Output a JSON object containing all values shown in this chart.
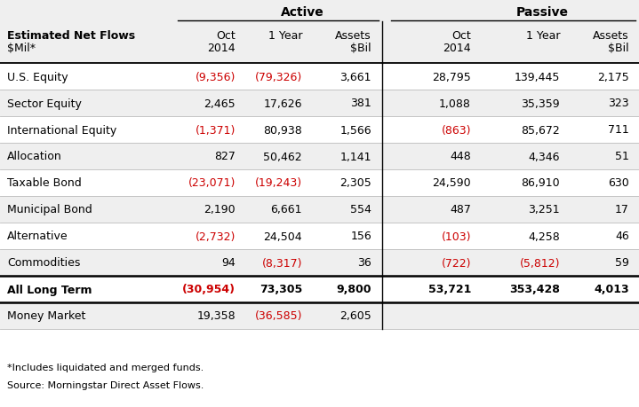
{
  "title_active": "Active",
  "title_passive": "Passive",
  "rows": [
    {
      "label": "U.S. Equity",
      "active_oct": "(9,356)",
      "active_1yr": "(79,326)",
      "active_assets": "3,661",
      "passive_oct": "28,795",
      "passive_1yr": "139,445",
      "passive_assets": "2,175",
      "active_oct_red": true,
      "active_1yr_red": true,
      "active_assets_red": false,
      "passive_oct_red": false,
      "passive_1yr_red": false,
      "passive_assets_red": false,
      "bold": false,
      "bg": "#ffffff"
    },
    {
      "label": "Sector Equity",
      "active_oct": "2,465",
      "active_1yr": "17,626",
      "active_assets": "381",
      "passive_oct": "1,088",
      "passive_1yr": "35,359",
      "passive_assets": "323",
      "active_oct_red": false,
      "active_1yr_red": false,
      "active_assets_red": false,
      "passive_oct_red": false,
      "passive_1yr_red": false,
      "passive_assets_red": false,
      "bold": false,
      "bg": "#efefef"
    },
    {
      "label": "International Equity",
      "active_oct": "(1,371)",
      "active_1yr": "80,938",
      "active_assets": "1,566",
      "passive_oct": "(863)",
      "passive_1yr": "85,672",
      "passive_assets": "711",
      "active_oct_red": true,
      "active_1yr_red": false,
      "active_assets_red": false,
      "passive_oct_red": true,
      "passive_1yr_red": false,
      "passive_assets_red": false,
      "bold": false,
      "bg": "#ffffff"
    },
    {
      "label": "Allocation",
      "active_oct": "827",
      "active_1yr": "50,462",
      "active_assets": "1,141",
      "passive_oct": "448",
      "passive_1yr": "4,346",
      "passive_assets": "51",
      "active_oct_red": false,
      "active_1yr_red": false,
      "active_assets_red": false,
      "passive_oct_red": false,
      "passive_1yr_red": false,
      "passive_assets_red": false,
      "bold": false,
      "bg": "#efefef"
    },
    {
      "label": "Taxable Bond",
      "active_oct": "(23,071)",
      "active_1yr": "(19,243)",
      "active_assets": "2,305",
      "passive_oct": "24,590",
      "passive_1yr": "86,910",
      "passive_assets": "630",
      "active_oct_red": true,
      "active_1yr_red": true,
      "active_assets_red": false,
      "passive_oct_red": false,
      "passive_1yr_red": false,
      "passive_assets_red": false,
      "bold": false,
      "bg": "#ffffff"
    },
    {
      "label": "Municipal Bond",
      "active_oct": "2,190",
      "active_1yr": "6,661",
      "active_assets": "554",
      "passive_oct": "487",
      "passive_1yr": "3,251",
      "passive_assets": "17",
      "active_oct_red": false,
      "active_1yr_red": false,
      "active_assets_red": false,
      "passive_oct_red": false,
      "passive_1yr_red": false,
      "passive_assets_red": false,
      "bold": false,
      "bg": "#efefef"
    },
    {
      "label": "Alternative",
      "active_oct": "(2,732)",
      "active_1yr": "24,504",
      "active_assets": "156",
      "passive_oct": "(103)",
      "passive_1yr": "4,258",
      "passive_assets": "46",
      "active_oct_red": true,
      "active_1yr_red": false,
      "active_assets_red": false,
      "passive_oct_red": true,
      "passive_1yr_red": false,
      "passive_assets_red": false,
      "bold": false,
      "bg": "#ffffff"
    },
    {
      "label": "Commodities",
      "active_oct": "94",
      "active_1yr": "(8,317)",
      "active_assets": "36",
      "passive_oct": "(722)",
      "passive_1yr": "(5,812)",
      "passive_assets": "59",
      "active_oct_red": false,
      "active_1yr_red": true,
      "active_assets_red": false,
      "passive_oct_red": true,
      "passive_1yr_red": true,
      "passive_assets_red": false,
      "bold": false,
      "bg": "#efefef"
    },
    {
      "label": "All Long Term",
      "active_oct": "(30,954)",
      "active_1yr": "73,305",
      "active_assets": "9,800",
      "passive_oct": "53,721",
      "passive_1yr": "353,428",
      "passive_assets": "4,013",
      "active_oct_red": true,
      "active_1yr_red": false,
      "active_assets_red": false,
      "passive_oct_red": false,
      "passive_1yr_red": false,
      "passive_assets_red": false,
      "bold": true,
      "bg": "#ffffff"
    },
    {
      "label": "Money Market",
      "active_oct": "19,358",
      "active_1yr": "(36,585)",
      "active_assets": "2,605",
      "passive_oct": "",
      "passive_1yr": "",
      "passive_assets": "",
      "active_oct_red": false,
      "active_1yr_red": true,
      "active_assets_red": false,
      "passive_oct_red": false,
      "passive_1yr_red": false,
      "passive_assets_red": false,
      "bold": false,
      "bg": "#efefef"
    }
  ],
  "footnote1": "*Includes liquidated and merged funds.",
  "footnote2": "Source: Morningstar Direct Asset Flows.",
  "bg_color": "#ffffff",
  "red_color": "#cc0000",
  "black_color": "#000000",
  "header_bg": "#efefef"
}
